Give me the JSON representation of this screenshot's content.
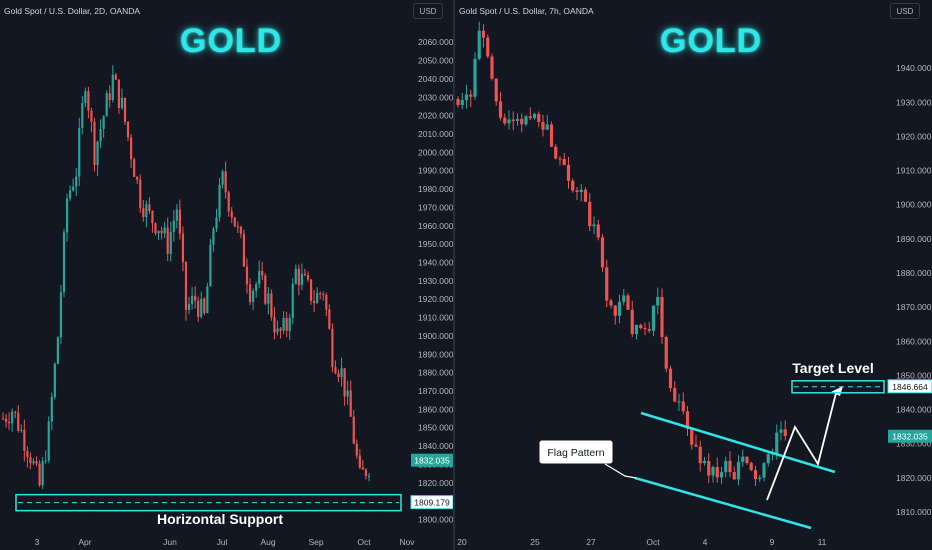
{
  "left": {
    "header": "Gold Spot / U.S. Dollar, 2D, OANDA",
    "currency": "USD",
    "title": "GOLD",
    "price_label": "1832.035",
    "support_label": "1809.179",
    "support_text": "Horizontal Support"
  },
  "right": {
    "header": "Gold Spot / U.S. Dollar, 7h, OANDA",
    "currency": "USD",
    "title": "GOLD",
    "price_label": "1832.035",
    "target_label": "1846.664",
    "target_text": "Target Level",
    "flag_text": "Flag Pattern"
  },
  "colors": {
    "up": "#26a69a",
    "down": "#ef5350",
    "accent": "#2ee6e6",
    "background": "#131722"
  },
  "chart_data": [
    {
      "type": "candlestick",
      "title": "Gold Spot / U.S. Dollar, 2D, OANDA",
      "ylim": [
        1800,
        2065
      ],
      "y_ticks": [
        1800,
        1810,
        1820,
        1830,
        1840,
        1850,
        1860,
        1870,
        1880,
        1890,
        1900,
        1910,
        1920,
        1930,
        1940,
        1950,
        1960,
        1970,
        1980,
        1990,
        2000,
        2010,
        2020,
        2030,
        2040,
        2050,
        2060
      ],
      "x_ticks": [
        "3",
        "Apr",
        "Jun",
        "Jul",
        "Aug",
        "Sep",
        "Oct",
        "Nov"
      ],
      "last_price": 1832.035,
      "support_level": 1809.179,
      "close_path": [
        [
          0,
          1855
        ],
        [
          3,
          1860
        ],
        [
          6,
          1848
        ],
        [
          9,
          1835
        ],
        [
          12,
          1818
        ],
        [
          15,
          1848
        ],
        [
          18,
          1900
        ],
        [
          21,
          1975
        ],
        [
          24,
          1990
        ],
        [
          27,
          2040
        ],
        [
          30,
          2000
        ],
        [
          33,
          2020
        ],
        [
          36,
          2040
        ],
        [
          39,
          2025
        ],
        [
          42,
          2000
        ],
        [
          45,
          1975
        ],
        [
          48,
          1965
        ],
        [
          51,
          1960
        ],
        [
          54,
          1950
        ],
        [
          57,
          1970
        ],
        [
          60,
          1915
        ],
        [
          63,
          1920
        ],
        [
          66,
          1910
        ],
        [
          69,
          1960
        ],
        [
          72,
          1985
        ],
        [
          75,
          1968
        ],
        [
          78,
          1950
        ],
        [
          81,
          1925
        ],
        [
          84,
          1930
        ],
        [
          87,
          1920
        ],
        [
          90,
          1900
        ],
        [
          93,
          1905
        ],
        [
          96,
          1935
        ],
        [
          99,
          1928
        ],
        [
          102,
          1920
        ],
        [
          105,
          1925
        ],
        [
          108,
          1890
        ],
        [
          111,
          1880
        ],
        [
          114,
          1855
        ],
        [
          117,
          1822
        ],
        [
          120,
          1830
        ]
      ]
    },
    {
      "type": "candlestick",
      "title": "Gold Spot / U.S. Dollar, 7h, OANDA",
      "ylim": [
        1805,
        1955
      ],
      "y_ticks": [
        1810,
        1820,
        1830,
        1840,
        1850,
        1860,
        1870,
        1880,
        1890,
        1900,
        1910,
        1920,
        1930,
        1940
      ],
      "x_ticks": [
        "20",
        "25",
        "27",
        "Oct",
        "4",
        "9",
        "11"
      ],
      "last_price": 1832.035,
      "target_level": 1846.664,
      "close_path": [
        [
          0,
          1931
        ],
        [
          3,
          1933
        ],
        [
          5,
          1951
        ],
        [
          7,
          1943
        ],
        [
          9,
          1929
        ],
        [
          11,
          1924
        ],
        [
          13,
          1923
        ],
        [
          15,
          1924
        ],
        [
          17,
          1926
        ],
        [
          19,
          1926
        ],
        [
          21,
          1922
        ],
        [
          23,
          1915
        ],
        [
          25,
          1913
        ],
        [
          27,
          1905
        ],
        [
          29,
          1903
        ],
        [
          31,
          1895
        ],
        [
          33,
          1890
        ],
        [
          35,
          1872
        ],
        [
          37,
          1869
        ],
        [
          39,
          1872
        ],
        [
          41,
          1864
        ],
        [
          43,
          1862
        ],
        [
          45,
          1865
        ],
        [
          47,
          1873
        ],
        [
          49,
          1851
        ],
        [
          51,
          1844
        ],
        [
          53,
          1838
        ],
        [
          55,
          1830
        ],
        [
          57,
          1826
        ],
        [
          59,
          1822
        ],
        [
          61,
          1822
        ],
        [
          63,
          1823
        ],
        [
          65,
          1820
        ],
        [
          67,
          1826
        ],
        [
          69,
          1821
        ],
        [
          71,
          1820
        ],
        [
          73,
          1825
        ],
        [
          75,
          1833
        ],
        [
          77,
          1832
        ]
      ]
    }
  ]
}
